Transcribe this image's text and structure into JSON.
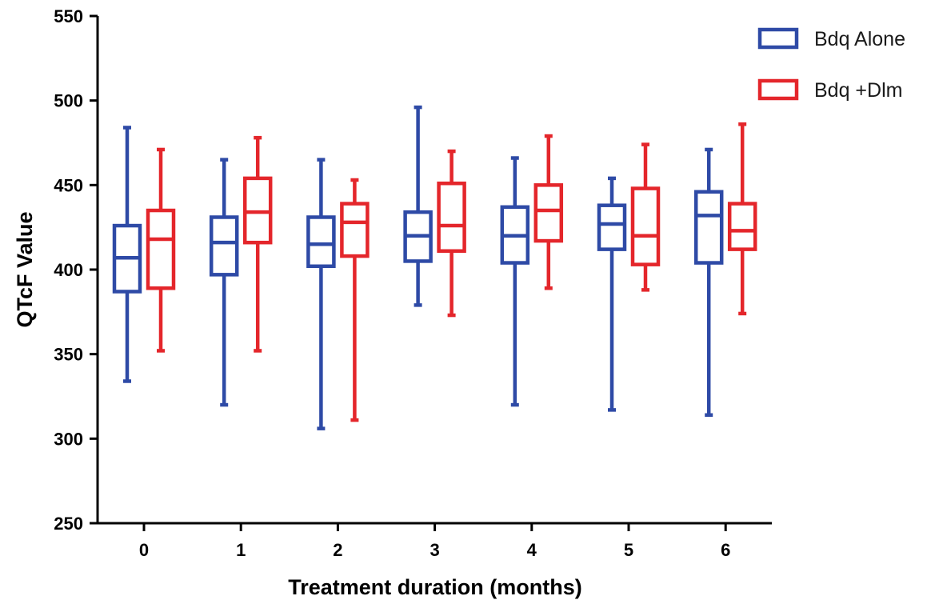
{
  "chart_data": {
    "type": "box",
    "xlabel": "Treatment duration (months)",
    "ylabel": "QTcF Value",
    "ylim": [
      250,
      550
    ],
    "yticks": [
      250,
      300,
      350,
      400,
      450,
      500,
      550
    ],
    "categories": [
      "0",
      "1",
      "2",
      "3",
      "4",
      "5",
      "6"
    ],
    "legend_position": "top-right",
    "grid": false,
    "series": [
      {
        "name": "Bdq Alone",
        "color": "#2e4aa6",
        "boxes": [
          {
            "min": 334,
            "q1": 387,
            "median": 407,
            "q3": 426,
            "max": 484
          },
          {
            "min": 320,
            "q1": 397,
            "median": 416,
            "q3": 431,
            "max": 465
          },
          {
            "min": 306,
            "q1": 402,
            "median": 415,
            "q3": 431,
            "max": 465
          },
          {
            "min": 379,
            "q1": 405,
            "median": 420,
            "q3": 434,
            "max": 496
          },
          {
            "min": 320,
            "q1": 404,
            "median": 420,
            "q3": 437,
            "max": 466
          },
          {
            "min": 317,
            "q1": 412,
            "median": 427,
            "q3": 438,
            "max": 454
          },
          {
            "min": 314,
            "q1": 404,
            "median": 432,
            "q3": 446,
            "max": 471
          }
        ]
      },
      {
        "name": "Bdq +Dlm",
        "color": "#e4262b",
        "boxes": [
          {
            "min": 352,
            "q1": 389,
            "median": 418,
            "q3": 435,
            "max": 471
          },
          {
            "min": 352,
            "q1": 416,
            "median": 434,
            "q3": 454,
            "max": 478
          },
          {
            "min": 311,
            "q1": 408,
            "median": 428,
            "q3": 439,
            "max": 453
          },
          {
            "min": 373,
            "q1": 411,
            "median": 426,
            "q3": 451,
            "max": 470
          },
          {
            "min": 389,
            "q1": 417,
            "median": 435,
            "q3": 450,
            "max": 479
          },
          {
            "min": 388,
            "q1": 403,
            "median": 420,
            "q3": 448,
            "max": 474
          },
          {
            "min": 374,
            "q1": 412,
            "median": 423,
            "q3": 439,
            "max": 486
          }
        ]
      }
    ]
  }
}
